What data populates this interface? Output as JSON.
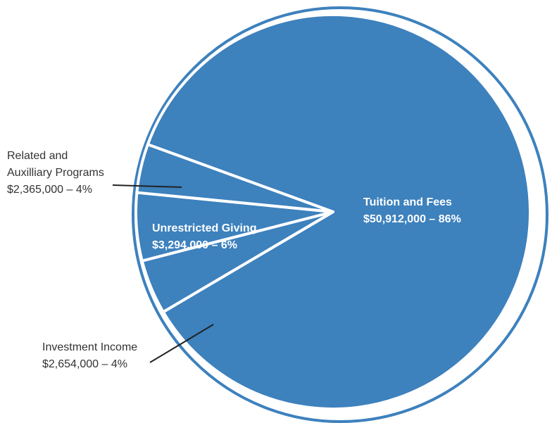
{
  "chart_data": {
    "type": "pie",
    "title": "",
    "slices": [
      {
        "label": "Tuition and Fees",
        "value": 50912000,
        "display": "$50,912,000 – 86%"
      },
      {
        "label": "Investment Income",
        "value": 2654000,
        "display": "$2,654,000 – 4%"
      },
      {
        "label": "Unrestricted Giving",
        "value": 3294000,
        "display": "$3,294,000 – 6%"
      },
      {
        "label": "Related and Auxilliary Programs",
        "label_lines": [
          "Related and",
          "Auxilliary Programs"
        ],
        "value": 2365000,
        "display": "$2,365,000 – 4%"
      }
    ],
    "colors": {
      "fill": "#3d81bd",
      "outline": "#3d81bd",
      "separator": "#ffffff",
      "leader": "#222222"
    },
    "legend": "none",
    "labels_inside": [
      "Tuition and Fees",
      "Unrestricted Giving"
    ],
    "labels_outside": [
      "Related and Auxilliary Programs",
      "Investment Income"
    ]
  }
}
